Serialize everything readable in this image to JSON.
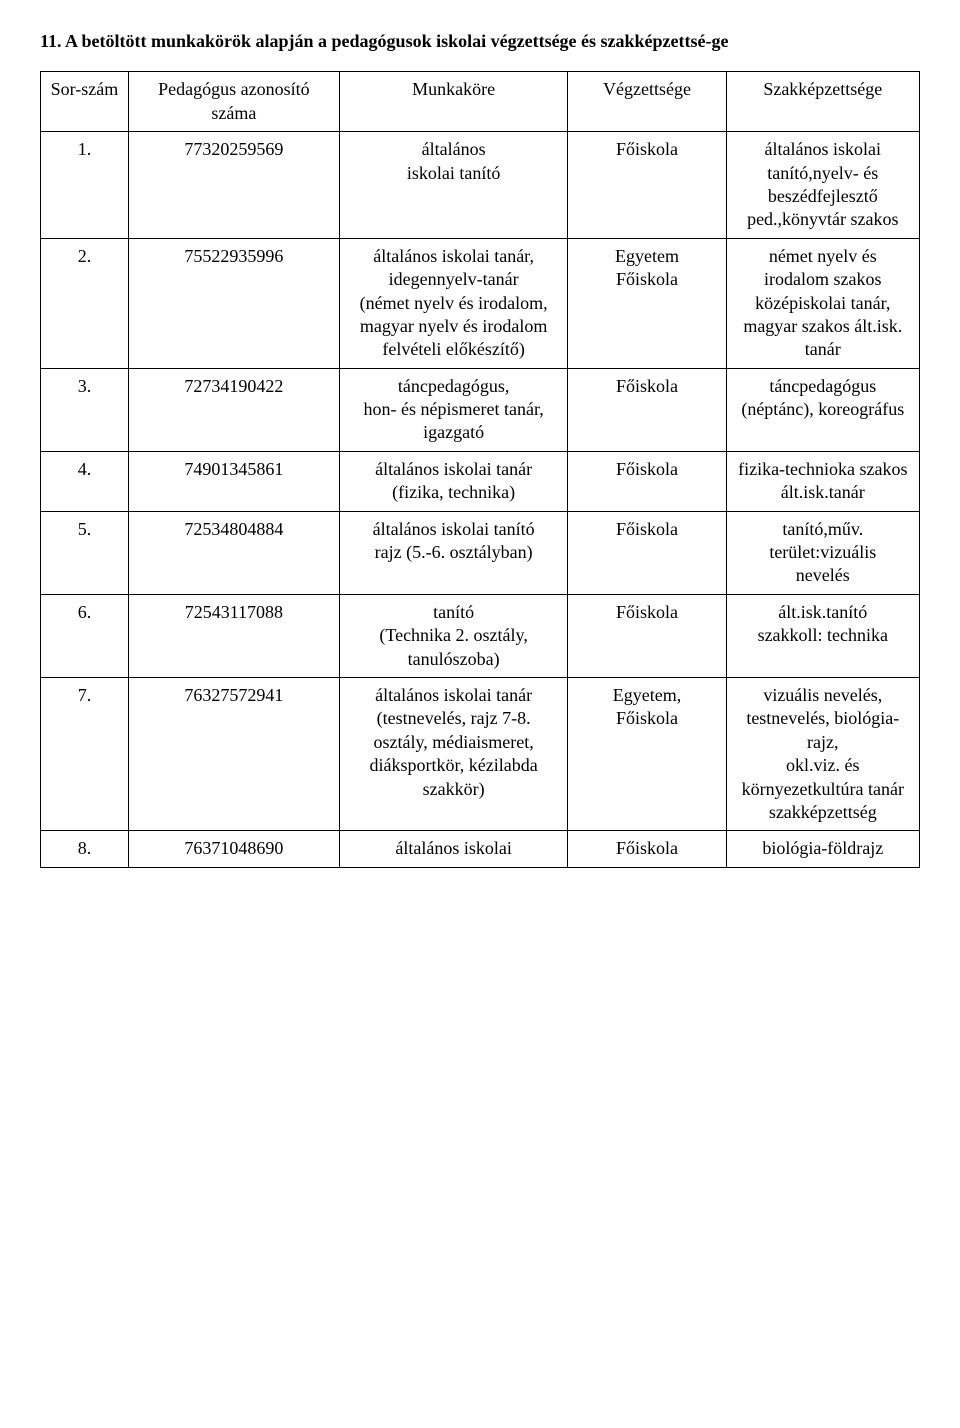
{
  "title": "11. A betöltött munkakörök alapján a pedagógusok iskolai végzettsége és szakképzettsé-ge",
  "headers": {
    "c1": "Sor-szám",
    "c2": "Pedagógus azonosító száma",
    "c3": "Munkaköre",
    "c4": "Végzettsége",
    "c5": "Szakképzettsége"
  },
  "rows": [
    {
      "n": "1.",
      "id": "77320259569",
      "role": "általános\niskolai tanító",
      "deg": "Főiskola",
      "qual": "általános iskolai tanító,nyelv- és beszédfejlesztő ped.,könyvtár szakos"
    },
    {
      "n": "2.",
      "id": "75522935996",
      "role": "általános iskolai tanár, idegennyelv-tanár\n(német nyelv és irodalom, magyar nyelv és irodalom felvételi előkészítő)",
      "deg": "Egyetem\nFőiskola",
      "qual": "német nyelv és irodalom szakos középiskolai tanár,\nmagyar szakos ált.isk. tanár"
    },
    {
      "n": "3.",
      "id": "72734190422",
      "role": "táncpedagógus,\nhon- és népismeret tanár,\nigazgató",
      "deg": "Főiskola",
      "qual": "táncpedagógus (néptánc), koreográfus"
    },
    {
      "n": "4.",
      "id": "74901345861",
      "role": "általános iskolai tanár\n(fizika, technika)",
      "deg": "Főiskola",
      "qual": "fizika-technioka szakos ált.isk.tanár"
    },
    {
      "n": "5.",
      "id": "72534804884",
      "role": "általános iskolai tanító\nrajz (5.-6. osztályban)",
      "deg": "Főiskola",
      "qual": "tanító,műv. terület:vizuális\nnevelés"
    },
    {
      "n": "6.",
      "id": "72543117088",
      "role": "tanító\n(Technika 2. osztály, tanulószoba)",
      "deg": "Főiskola",
      "qual": "ált.isk.tanító\nszakkoll: technika"
    },
    {
      "n": "7.",
      "id": "76327572941",
      "role": "általános iskolai tanár\n(testnevelés, rajz 7-8. osztály, médiaismeret, diáksportkör, kézilabda szakkör)",
      "deg": "Egyetem,\nFőiskola",
      "qual": "vizuális nevelés, testnevelés, biológia-rajz,\nokl.viz. és környezetkultúra tanár szakképzettség"
    },
    {
      "n": "8.",
      "id": "76371048690",
      "role": "általános iskolai",
      "deg": "Főiskola",
      "qual": "biológia-földrajz"
    }
  ]
}
